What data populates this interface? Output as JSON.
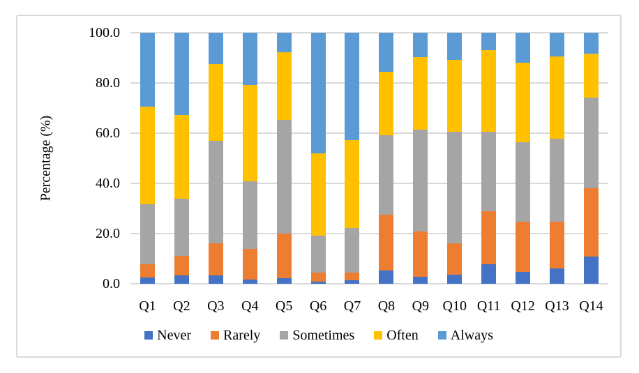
{
  "chart_data": {
    "type": "bar",
    "subtype": "stacked-column-100",
    "categories": [
      "Q1",
      "Q2",
      "Q3",
      "Q4",
      "Q5",
      "Q6",
      "Q7",
      "Q8",
      "Q9",
      "Q10",
      "Q11",
      "Q12",
      "Q13",
      "Q14"
    ],
    "series": [
      {
        "name": "Never",
        "color": "#4472C4",
        "values": [
          2.4,
          3.4,
          3.3,
          1.8,
          2.3,
          0.8,
          1.4,
          5.2,
          2.8,
          3.7,
          7.8,
          4.8,
          6.0,
          10.8
        ]
      },
      {
        "name": "Rarely",
        "color": "#ED7D31",
        "values": [
          5.5,
          7.8,
          12.7,
          12.2,
          17.6,
          3.7,
          3.1,
          22.2,
          18.0,
          12.4,
          21.1,
          20.0,
          18.8,
          27.3
        ]
      },
      {
        "name": "Sometimes",
        "color": "#A5A5A5",
        "values": [
          23.9,
          22.7,
          40.9,
          26.9,
          45.5,
          14.8,
          17.6,
          31.7,
          40.7,
          44.4,
          31.6,
          31.6,
          33.0,
          36.0
        ]
      },
      {
        "name": "Often",
        "color": "#FFC000",
        "values": [
          38.8,
          33.3,
          30.7,
          38.2,
          26.9,
          32.7,
          35.0,
          25.4,
          28.7,
          28.6,
          32.7,
          31.8,
          32.9,
          17.6
        ]
      },
      {
        "name": "Always",
        "color": "#5B9BD5",
        "values": [
          29.4,
          32.8,
          12.4,
          20.9,
          7.7,
          48.0,
          42.9,
          15.5,
          9.8,
          10.9,
          6.8,
          11.8,
          9.3,
          8.3
        ]
      }
    ],
    "title": "",
    "xlabel": "",
    "ylabel": "Percentage (%)",
    "yticks": [
      "100.0",
      "80.0",
      "60.0",
      "40.0",
      "20.0",
      "0.0"
    ],
    "ylim": [
      0,
      100
    ],
    "grid": true,
    "gridline_color": "#D9D9D9",
    "legend_position": "bottom",
    "legend_labels": [
      "Never",
      "Rarely",
      "Sometimes",
      "Often",
      "Always"
    ]
  }
}
